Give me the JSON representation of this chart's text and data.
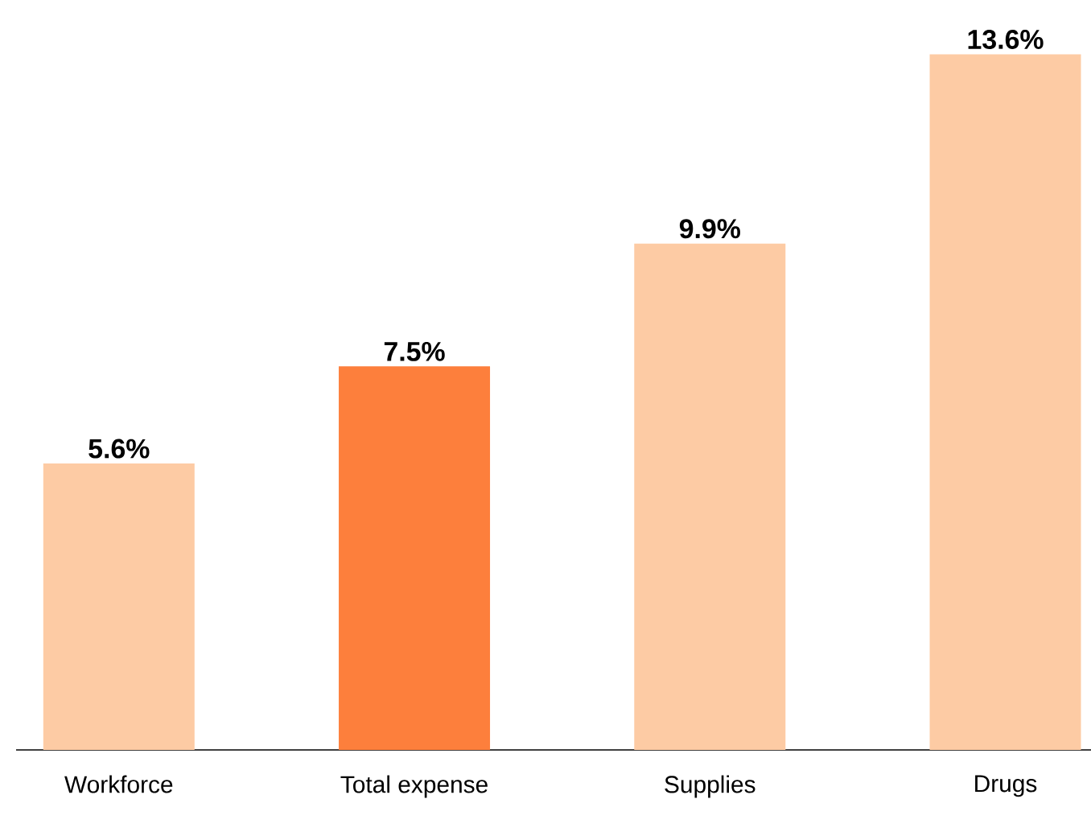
{
  "chart_data": {
    "type": "bar",
    "categories": [
      "Workforce",
      "Total expense",
      "Supplies",
      "Drugs"
    ],
    "values": [
      5.6,
      7.5,
      9.9,
      13.6
    ],
    "colors": [
      "#fdcba4",
      "#fd7f3c",
      "#fdcba4",
      "#fdcba4"
    ],
    "value_labels": [
      "5.6%",
      "7.5%",
      "9.9%",
      "13.6%"
    ]
  }
}
